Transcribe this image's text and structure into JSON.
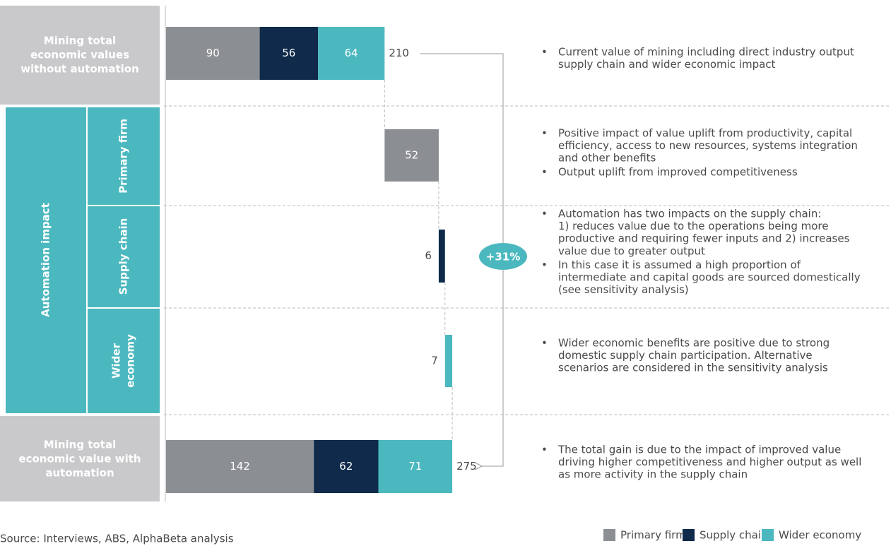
{
  "chart_data": {
    "type": "waterfall",
    "series": [
      {
        "name": "Primary firms",
        "color": "#8b8e92"
      },
      {
        "name": "Supply chain",
        "color": "#0f2a4a"
      },
      {
        "name": "Wider economy",
        "color": "#4bb8bf"
      }
    ],
    "start": {
      "label": [
        "Mining total",
        "economic values",
        "without automation"
      ],
      "values": [
        90,
        56,
        64
      ],
      "total": 210,
      "notes": [
        [
          "Current value of mining including direct industry output",
          "supply chain and wider economic impact"
        ]
      ]
    },
    "impact_label": "Automation impact",
    "steps": [
      {
        "label": "Primary firm",
        "value": 52,
        "series": 0,
        "notes": [
          [
            "Positive impact of value uplift from productivity, capital",
            "efficiency, access to new resources, systems integration",
            "and other benefits"
          ],
          [
            "Output uplift from improved competitiveness"
          ]
        ]
      },
      {
        "label": "Supply chain",
        "value": 6,
        "series": 1,
        "notes": [
          [
            "Automation has two impacts on the supply chain:",
            "1) reduces value due to the operations being more",
            "productive and requiring fewer inputs and 2) increases",
            "value due to greater output"
          ],
          [
            "In this case it is assumed a high proportion of",
            "intermediate and capital goods are sourced domestically",
            "(see sensitivity analysis)"
          ]
        ]
      },
      {
        "label": [
          "Wider",
          "economy"
        ],
        "value": 7,
        "series": 2,
        "notes": [
          [
            "Wider economic benefits are positive due to strong",
            "domestic supply chain participation. Alternative",
            "scenarios are considered in the sensitivity analysis"
          ]
        ]
      }
    ],
    "end": {
      "label": [
        "Mining total",
        "economic value with",
        "automation"
      ],
      "values": [
        142,
        62,
        71
      ],
      "total": 275,
      "notes": [
        [
          "The total gain is due to the impact of improved value",
          "driving higher competitiveness and higher output as well",
          "as more activity in the supply chain"
        ]
      ]
    },
    "change_label": "+31%",
    "source": "Source: Interviews, ABS, AlphaBeta analysis"
  }
}
